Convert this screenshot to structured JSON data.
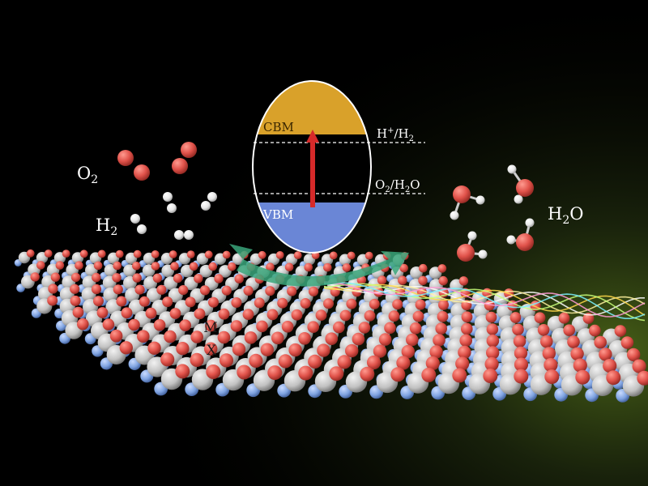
{
  "band_diagram": {
    "cbm_label": "CBM",
    "vbm_label": "VBM",
    "reduction_level": {
      "prefix": "H",
      "sup": "+",
      "mid": "/H",
      "sub": "2"
    },
    "oxidation_level": {
      "prefix": "O",
      "sub": "2",
      "suffix": "/H",
      "sub2": "2",
      "tail": "O"
    }
  },
  "molecules": {
    "o2": {
      "base": "O",
      "sub": "2"
    },
    "h2": {
      "base": "H",
      "sub": "2"
    },
    "h2o": {
      "base": "H",
      "sub": "2",
      "tail": "O"
    }
  },
  "lattice": {
    "metal_label": "M",
    "chalcogen_label": "X"
  },
  "colors": {
    "oxygen": "#e0524a",
    "hydrogen": "#f2f2f2",
    "metal": "#c7c7c7",
    "chalcogen": "#7ea2e0",
    "top_atom": "#e0574e",
    "cbm_band": "#d9a12a",
    "vbm_band": "#6a86d6",
    "excitation_arrow": "#d62a2a",
    "transfer_arrow": "#3aa47a"
  }
}
